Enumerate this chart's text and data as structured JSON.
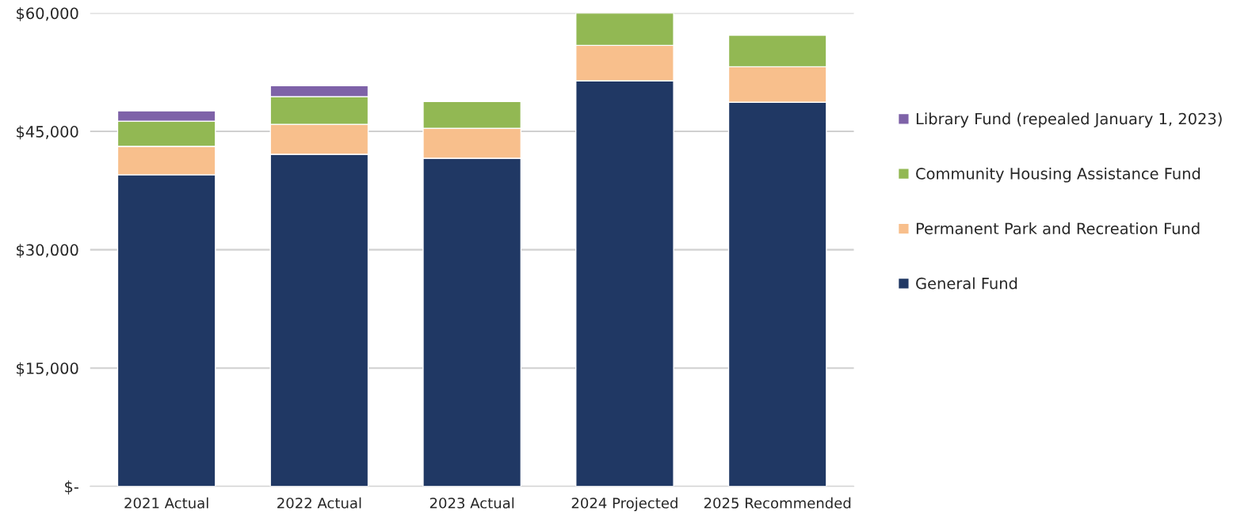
{
  "chart_data": {
    "type": "bar",
    "stacked": true,
    "categories": [
      "2021 Actual",
      "2022 Actual",
      "2023 Actual",
      "2024 Projected",
      "2025 Recommended"
    ],
    "series": [
      {
        "name": "General Fund",
        "color": "#203864",
        "values": [
          39500,
          42100,
          41600,
          51400,
          48700
        ]
      },
      {
        "name": "Permanent Park and Recreation Fund",
        "color": "#f8bf8c",
        "values": [
          3600,
          3800,
          3800,
          4500,
          4500
        ]
      },
      {
        "name": "Community Housing Assistance Fund",
        "color": "#92b853",
        "values": [
          3200,
          3500,
          3400,
          4100,
          4000
        ]
      },
      {
        "name": "Library Fund (repealed January 1, 2023)",
        "color": "#7e62a8",
        "values": [
          1300,
          1400,
          null,
          null,
          null
        ]
      }
    ],
    "ylim": [
      0,
      60000
    ],
    "yticks": [
      {
        "value": 0,
        "label": "$-"
      },
      {
        "value": 15000,
        "label": "$15,000"
      },
      {
        "value": 30000,
        "label": "$30,000"
      },
      {
        "value": 45000,
        "label": "$45,000"
      },
      {
        "value": 60000,
        "label": "$60,000"
      }
    ],
    "grid": "y",
    "legend": "right"
  }
}
